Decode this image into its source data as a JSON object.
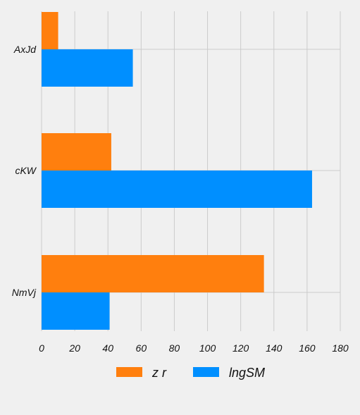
{
  "chart_data": {
    "type": "bar",
    "orientation": "horizontal",
    "categories": [
      "AxJd",
      "cKW",
      "NmVj"
    ],
    "series": [
      {
        "name": "z r",
        "color": "#ff7f0e",
        "values": [
          10,
          42,
          134
        ]
      },
      {
        "name": "lngSM",
        "color": "#008fff",
        "values": [
          55,
          163,
          41
        ]
      }
    ],
    "xlim": [
      0,
      180
    ],
    "xticks": [
      0,
      20,
      40,
      60,
      80,
      100,
      120,
      140,
      160,
      180
    ],
    "title": "",
    "xlabel": "",
    "ylabel": "",
    "grid": true,
    "legend_position": "bottom-center"
  }
}
